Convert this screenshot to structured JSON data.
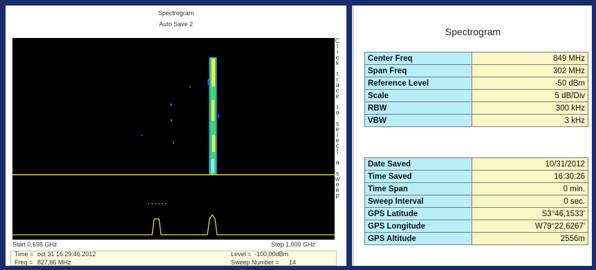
{
  "left_panel": {
    "title": "Spectrogram",
    "subtitle": "Auto Save 2",
    "side_hint": "Click trace to select a sweep",
    "start": "Start 0,698 GHz",
    "stop": "Stop 1,000 GHz",
    "info": {
      "time_label": "Time =",
      "time": "oct 31 16:29:46 2012",
      "level_label": "Level =",
      "level": "-100,00dBm",
      "freq_label": "Freq =",
      "freq": "827,86 MHz",
      "sweep_label": "Sweep Number =",
      "sweep": "14"
    }
  },
  "right_panel": {
    "title": "Spectrogram",
    "settings": [
      [
        "Center Freq",
        "849 MHz"
      ],
      [
        "Span Freq",
        "302 MHz"
      ],
      [
        "Reference Level",
        "-50 dBm"
      ],
      [
        "Scale",
        "5 dB/Div"
      ],
      [
        "RBW",
        "300 kHz"
      ],
      [
        "VBW",
        "3 kHz"
      ]
    ],
    "details": [
      [
        "Date Saved",
        "10/31/2012"
      ],
      [
        "Time Saved",
        "16:30:26"
      ],
      [
        "Time Span",
        "0 min."
      ],
      [
        "Sweep Interval",
        "0 sec."
      ],
      [
        "GPS Latitude",
        "S3°46,1533'"
      ],
      [
        "GPS Longitude",
        "W79°22,6267'"
      ],
      [
        "GPS Altitude",
        "2556m"
      ]
    ]
  }
}
